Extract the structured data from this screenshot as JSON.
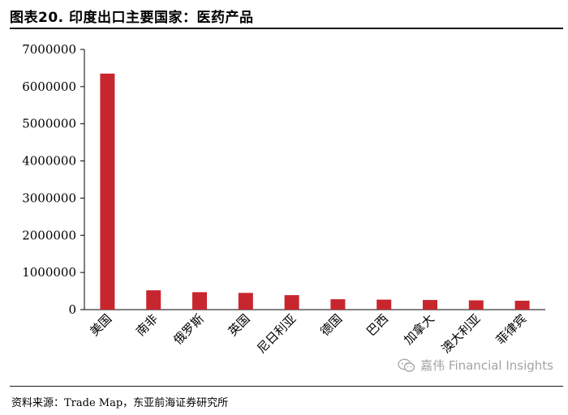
{
  "header": {
    "title": "图表20. 印度出口主要国家：医药产品"
  },
  "footer": {
    "source": "资料来源：Trade Map，东亚前海证券研究所"
  },
  "watermark": {
    "text": "嘉伟 Financial Insights",
    "icon": "wechat-icon"
  },
  "colors": {
    "bar": "#C8262E",
    "axis": "#000000"
  },
  "chart_data": {
    "type": "bar",
    "categories": [
      "美国",
      "南非",
      "俄罗斯",
      "英国",
      "尼日利亚",
      "德国",
      "巴西",
      "加拿大",
      "澳大利亚",
      "菲律宾"
    ],
    "values": [
      6350000,
      520000,
      470000,
      450000,
      390000,
      280000,
      270000,
      260000,
      250000,
      240000
    ],
    "ylim": [
      0,
      7000000
    ],
    "yticks": [
      "0",
      "1000000",
      "2000000",
      "3000000",
      "4000000",
      "5000000",
      "6000000",
      "7000000"
    ],
    "grid": false,
    "legend": "none"
  }
}
